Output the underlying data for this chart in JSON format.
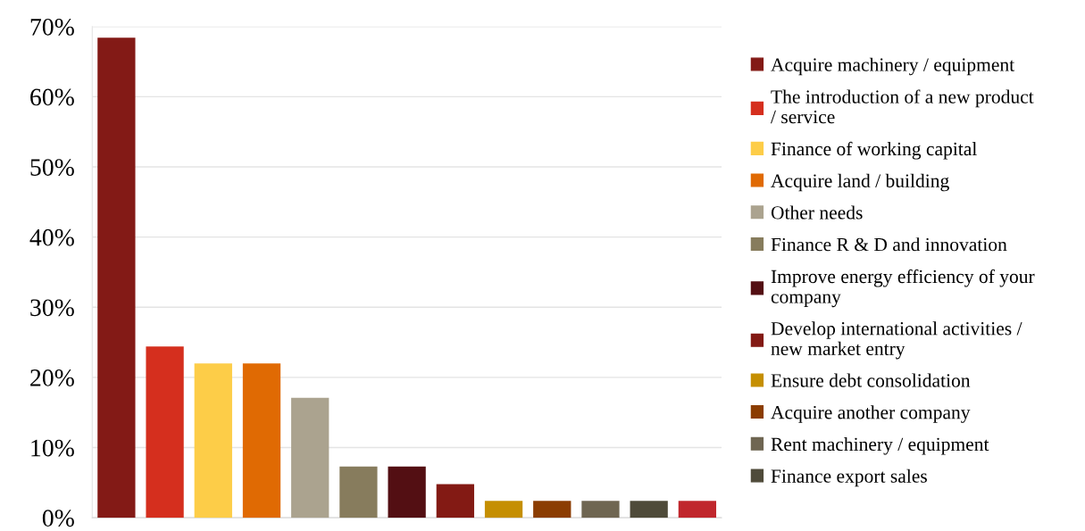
{
  "chart_data": {
    "type": "bar",
    "categories": [
      null,
      null,
      null,
      null,
      null,
      null,
      null,
      null,
      null,
      null,
      null,
      null,
      null
    ],
    "series": [
      {
        "name": "Acquire machinery / equipment",
        "color": "#831a16",
        "values": [
          68.4,
          null,
          null,
          null,
          null,
          null,
          null,
          null,
          null,
          null,
          null,
          null,
          null
        ]
      },
      {
        "name": "The introduction of a new product / service",
        "color": "#d52f1e",
        "values": [
          null,
          24.4,
          null,
          null,
          null,
          null,
          null,
          null,
          null,
          null,
          null,
          null,
          null
        ]
      },
      {
        "name": "Finance of working capital",
        "color": "#fdcd48",
        "values": [
          null,
          null,
          22.0,
          null,
          null,
          null,
          null,
          null,
          null,
          null,
          null,
          null,
          null
        ]
      },
      {
        "name": "Acquire land / building",
        "color": "#e06a03",
        "values": [
          null,
          null,
          null,
          22.0,
          null,
          null,
          null,
          null,
          null,
          null,
          null,
          null,
          null
        ]
      },
      {
        "name": "Other needs",
        "color": "#aba38f",
        "values": [
          null,
          null,
          null,
          null,
          17.1,
          null,
          null,
          null,
          null,
          null,
          null,
          null,
          null
        ]
      },
      {
        "name": "Finance R & D and innovation",
        "color": "#877c5d",
        "values": [
          null,
          null,
          null,
          null,
          null,
          7.3,
          null,
          null,
          null,
          null,
          null,
          null,
          null
        ]
      },
      {
        "name": "Improve energy efficiency of your company",
        "color": "#530f13",
        "values": [
          null,
          null,
          null,
          null,
          null,
          null,
          7.3,
          null,
          null,
          null,
          null,
          null,
          null
        ]
      },
      {
        "name": "Develop international activities / new market entry",
        "color": "#831a14",
        "values": [
          null,
          null,
          null,
          null,
          null,
          null,
          null,
          4.8,
          null,
          null,
          null,
          null,
          null
        ]
      },
      {
        "name": "Ensure debt consolidation",
        "color": "#c58f02",
        "values": [
          null,
          null,
          null,
          null,
          null,
          null,
          null,
          null,
          2.4,
          null,
          null,
          null,
          null
        ]
      },
      {
        "name": "Acquire another company",
        "color": "#8b3d02",
        "values": [
          null,
          null,
          null,
          null,
          null,
          null,
          null,
          null,
          null,
          2.4,
          null,
          null,
          null
        ]
      },
      {
        "name": "Rent machinery / equipment",
        "color": "#6f6652",
        "values": [
          null,
          null,
          null,
          null,
          null,
          null,
          null,
          null,
          null,
          null,
          2.4,
          null,
          null
        ]
      },
      {
        "name": "Finance export sales",
        "color": "#4f4b3a",
        "values": [
          null,
          null,
          null,
          null,
          null,
          null,
          null,
          null,
          null,
          null,
          null,
          2.4,
          null
        ]
      },
      {
        "color": "#c0272d",
        "values": [
          null,
          null,
          null,
          null,
          null,
          null,
          null,
          null,
          null,
          null,
          null,
          null,
          2.4
        ]
      }
    ],
    "ylim": [
      0,
      70
    ],
    "yticks": [
      {
        "value": 0,
        "label": "0%"
      },
      {
        "value": 10,
        "label": "10%"
      },
      {
        "value": 20,
        "label": "20%"
      },
      {
        "value": 30,
        "label": "30%"
      },
      {
        "value": 40,
        "label": "40%"
      },
      {
        "value": 50,
        "label": "50%"
      },
      {
        "value": 60,
        "label": "60%"
      },
      {
        "value": 70,
        "label": "70%"
      }
    ],
    "grid": "y",
    "legend": "right"
  }
}
